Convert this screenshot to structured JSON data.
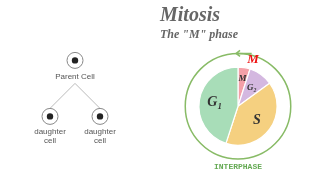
{
  "chart_data": {
    "type": "pie",
    "title": "Mitosis",
    "subtitle": "The \"M\" phase",
    "categories": [
      "M",
      "G₂",
      "S",
      "G₁"
    ],
    "values": [
      5,
      10,
      40,
      45
    ],
    "colors": [
      "#f4a0a8",
      "#d4b8e0",
      "#f5d080",
      "#a8ddb8"
    ],
    "annotations": [
      "INTERPHASE",
      "M",
      "Parent Cell",
      "daughter\ncell",
      "daughter\ncell"
    ],
    "legend": false
  }
}
